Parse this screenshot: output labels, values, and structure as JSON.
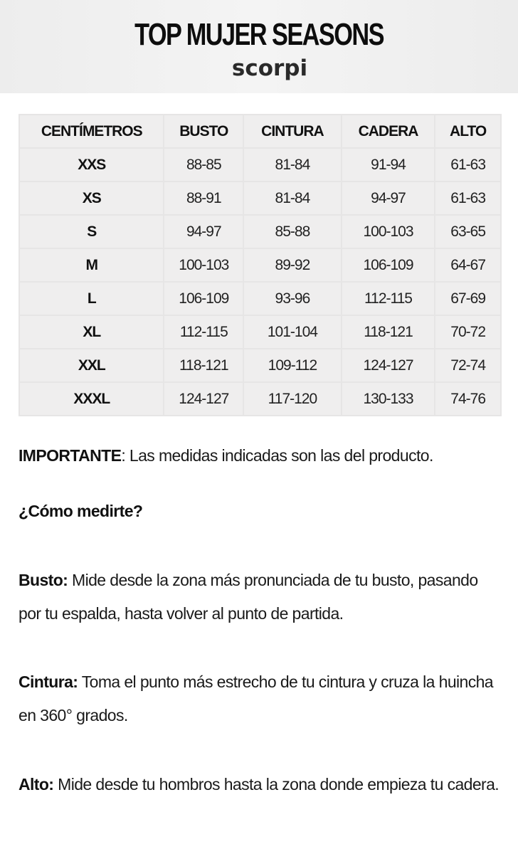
{
  "header": {
    "title": "TOP MUJER SEASONS",
    "brand": "scorpi"
  },
  "table": {
    "columns": [
      "CENTÍMETROS",
      "BUSTO",
      "CINTURA",
      "CADERA",
      "ALTO"
    ],
    "rows": [
      [
        "XXS",
        "88-85",
        "81-84",
        "91-94",
        "61-63"
      ],
      [
        "XS",
        "88-91",
        "81-84",
        "94-97",
        "61-63"
      ],
      [
        "S",
        "94-97",
        "85-88",
        "100-103",
        "63-65"
      ],
      [
        "M",
        "100-103",
        "89-92",
        "106-109",
        "64-67"
      ],
      [
        "L",
        "106-109",
        "93-96",
        "112-115",
        "67-69"
      ],
      [
        "XL",
        "112-115",
        "101-104",
        "118-121",
        "70-72"
      ],
      [
        "XXL",
        "118-121",
        "109-112",
        "124-127",
        "72-74"
      ],
      [
        "XXXL",
        "124-127",
        "117-120",
        "130-133",
        "74-76"
      ]
    ]
  },
  "notes": {
    "important_label": "IMPORTANTE",
    "important_text": ": Las medidas indicadas son las del producto.",
    "how_to": "¿Cómo medirte?",
    "busto_label": "Busto:",
    "busto_text": " Mide desde la zona más pronunciada de tu busto, pasando por tu espalda, hasta volver al punto de partida.",
    "cintura_label": "Cintura:",
    "cintura_text": " Toma el punto más estrecho de tu cintura y cruza la huincha en 360° grados.",
    "alto_label": "Alto:",
    "alto_text": " Mide desde tu hombros hasta la zona donde empieza tu cadera."
  }
}
